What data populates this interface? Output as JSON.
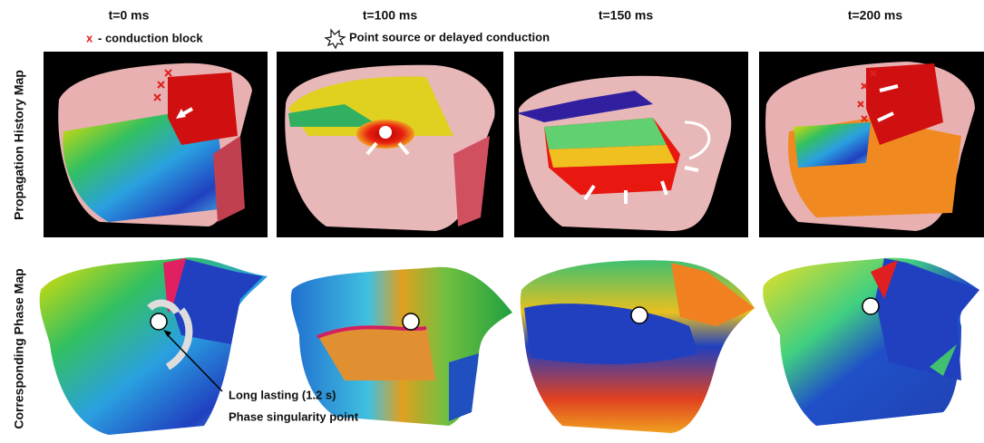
{
  "columns": [
    {
      "label": "t=0 ms"
    },
    {
      "label": "t=100 ms"
    },
    {
      "label": "t=150 ms"
    },
    {
      "label": "t=200 ms"
    }
  ],
  "legend": {
    "block_symbol": "x",
    "block_label": "- conduction block",
    "point_source_label": "Point source or delayed conduction"
  },
  "rows": [
    {
      "label": "Propagation History Map"
    },
    {
      "label": "Corresponding Phase Map"
    }
  ],
  "annotation": {
    "lines": [
      "Long lasting (1.2 s)",
      "Phase singularity point"
    ]
  }
}
